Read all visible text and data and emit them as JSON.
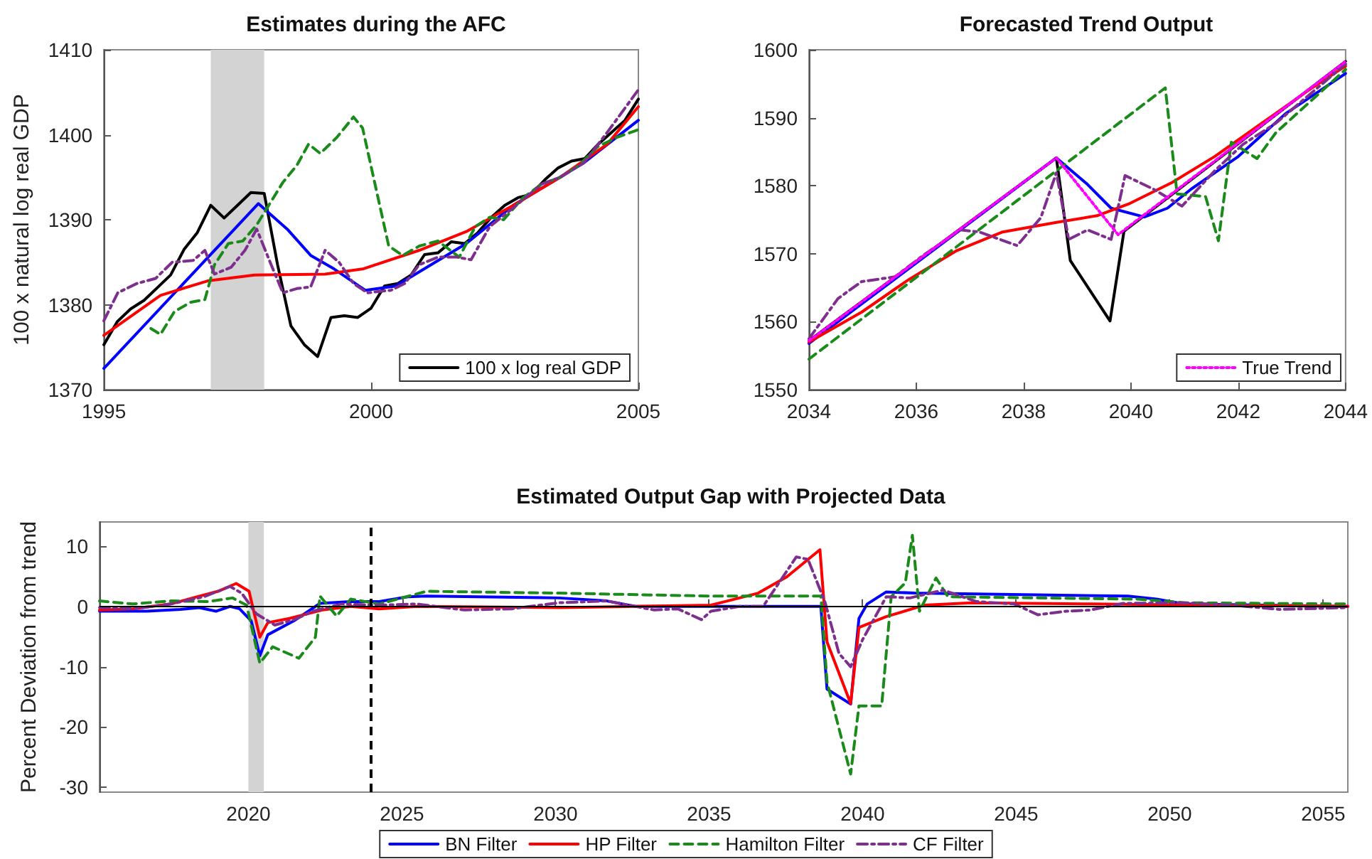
{
  "chart_data": [
    {
      "type": "line",
      "title": "Estimates during the AFC",
      "ylabel": "100 x natural log real GDP",
      "xlim": [
        1995,
        2005
      ],
      "xticks": [
        1995,
        2000,
        2005
      ],
      "ylim": [
        1370,
        1410
      ],
      "yticks": [
        1370,
        1380,
        1390,
        1400,
        1410
      ],
      "grid": false,
      "legend": "bottom right",
      "marker": "none",
      "bands": [
        {
          "axis": "x",
          "from": 1997,
          "to": 1998,
          "color": "#d3d3d3"
        }
      ],
      "series": [
        {
          "name": "100 x log real GDP",
          "color": "#000000",
          "line_style": "solid",
          "x": [
            1995,
            1995.25,
            1995.5,
            1995.75,
            1996,
            1996.25,
            1996.5,
            1996.75,
            1997,
            1997.25,
            1997.5,
            1997.75,
            1998,
            1998.25,
            1998.5,
            1998.75,
            1999,
            1999.25,
            1999.5,
            1999.75,
            2000,
            2000.25,
            2000.5,
            2000.75,
            2001,
            2001.25,
            2001.5,
            2001.75,
            2002,
            2002.25,
            2002.5,
            2002.75,
            2003,
            2003.25,
            2003.5,
            2003.75,
            2004,
            2004.25,
            2004.5,
            2004.75,
            2005
          ],
          "values": [
            1375.3,
            1378.0,
            1379.5,
            1380.5,
            1382.0,
            1383.5,
            1386.5,
            1388.5,
            1391.7,
            1390.2,
            1391.7,
            1393.2,
            1393.1,
            1384.7,
            1377.5,
            1375.3,
            1373.9,
            1378.5,
            1378.7,
            1378.5,
            1379.6,
            1382.2,
            1382.5,
            1383.5,
            1385.9,
            1386.1,
            1387.4,
            1387.2,
            1388.5,
            1390.3,
            1391.7,
            1392.6,
            1393.0,
            1394.7,
            1396.1,
            1396.9,
            1397.2,
            1398.9,
            1400.3,
            1401.7,
            1404.2
          ]
        },
        {
          "color": "#0000ff",
          "line_style": "solid",
          "x": [
            1995,
            1997.89,
            1998.43,
            1998.87,
            1999.31,
            1999.89,
            2000.46,
            2001.78,
            2002.66,
            2003.98,
            2005
          ],
          "values": [
            1372.5,
            1391.9,
            1388.9,
            1385.8,
            1384.2,
            1381.7,
            1382.2,
            1387.2,
            1391.7,
            1396.7,
            1401.7
          ]
        },
        {
          "color": "#ff0000",
          "line_style": "solid",
          "x": [
            1995,
            1996.06,
            1996.94,
            1997.82,
            1999.14,
            1999.84,
            2000.9,
            2001.78,
            2002.66,
            2003.54,
            2004.42,
            2005
          ],
          "values": [
            1376.4,
            1381.1,
            1382.8,
            1383.5,
            1383.6,
            1384.2,
            1386.4,
            1388.6,
            1391.7,
            1395.0,
            1398.9,
            1403.3
          ]
        },
        {
          "color": "#1a8a1a",
          "line_style": "dashed",
          "x": [
            1995.88,
            1996.06,
            1996.32,
            1996.63,
            1996.89,
            1997.07,
            1997.33,
            1997.6,
            1997.86,
            1998.35,
            1998.61,
            1998.83,
            1999.05,
            1999.36,
            1999.67,
            1999.84,
            2000.33,
            2000.59,
            2000.9,
            2001.25,
            2001.65,
            2001.95,
            2002.22,
            2002.48,
            2002.83,
            2003.19,
            2003.54,
            2003.89,
            2004.24,
            2004.6,
            2005
          ],
          "values": [
            1377.2,
            1376.5,
            1379.2,
            1380.3,
            1380.6,
            1384.7,
            1387.2,
            1387.5,
            1389.4,
            1394.4,
            1396.4,
            1398.9,
            1397.8,
            1399.7,
            1402.1,
            1400.8,
            1386.9,
            1385.8,
            1386.9,
            1387.5,
            1385.6,
            1389.2,
            1390.3,
            1390.0,
            1392.5,
            1394.2,
            1395.0,
            1396.4,
            1398.6,
            1399.7,
            1400.6
          ]
        },
        {
          "color": "#7e2f8e",
          "line_style": "dashdot",
          "x": [
            1995,
            1995.26,
            1995.62,
            1995.97,
            1996.28,
            1996.67,
            1996.89,
            1997.07,
            1997.38,
            1997.64,
            1997.86,
            1998.13,
            1998.35,
            1998.61,
            1998.87,
            1999.14,
            1999.4,
            1999.67,
            1999.93,
            2000.37,
            2000.63,
            2000.9,
            2001.25,
            2001.6,
            2001.87,
            2002.22,
            2002.66,
            2003.19,
            2003.54,
            2003.98,
            2004.42,
            2005
          ],
          "values": [
            1378.1,
            1381.4,
            1382.5,
            1383.1,
            1385.0,
            1385.2,
            1386.4,
            1383.6,
            1384.4,
            1386.4,
            1388.9,
            1384.7,
            1381.4,
            1381.9,
            1382.1,
            1386.4,
            1385.0,
            1382.5,
            1381.4,
            1381.7,
            1382.5,
            1384.7,
            1385.6,
            1385.6,
            1385.3,
            1389.2,
            1391.4,
            1394.2,
            1395.0,
            1396.7,
            1400.3,
            1405.3
          ]
        }
      ]
    },
    {
      "type": "line",
      "title": "Forecasted Trend Output",
      "xlim": [
        2034,
        2044
      ],
      "xticks": [
        2034,
        2036,
        2038,
        2040,
        2042,
        2044
      ],
      "ylim": [
        1550,
        1600
      ],
      "yticks": [
        1550,
        1560,
        1570,
        1580,
        1590,
        1600
      ],
      "grid": false,
      "legend": "bottom right",
      "marker": "none",
      "series": [
        {
          "color": "#000000",
          "line_style": "solid",
          "x": [
            2034,
            2038.61,
            2038.87,
            2039.61,
            2039.87,
            2044
          ],
          "values": [
            1557.2,
            1584.1,
            1569.0,
            1560.1,
            1573.3,
            1598.3
          ]
        },
        {
          "color": "#0000ff",
          "line_style": "solid",
          "x": [
            2034,
            2038.61,
            2039.19,
            2039.63,
            2040.25,
            2040.68,
            2041.12,
            2042,
            2042.88,
            2044
          ],
          "values": [
            1556.8,
            1584.1,
            1580.2,
            1576.7,
            1575.4,
            1576.7,
            1579.5,
            1584.3,
            1590.6,
            1596.5
          ]
        },
        {
          "color": "#ff0000",
          "line_style": "solid",
          "x": [
            2034,
            2034.98,
            2035.86,
            2036.74,
            2037.61,
            2038.61,
            2039.37,
            2039.98,
            2040.77,
            2041.56,
            2042.44,
            2043.32,
            2044
          ],
          "values": [
            1557.0,
            1561.4,
            1566.2,
            1570.4,
            1573.2,
            1574.6,
            1575.6,
            1577.4,
            1580.5,
            1584.3,
            1589.2,
            1594.1,
            1597.6
          ]
        },
        {
          "color": "#1a8a1a",
          "line_style": "dashed",
          "x": [
            2034,
            2040.64,
            2040.86,
            2041.39,
            2041.63,
            2041.87,
            2042.35,
            2042.7,
            2044
          ],
          "values": [
            1554.5,
            1594.4,
            1578.8,
            1578.4,
            1571.9,
            1586.4,
            1584.0,
            1587.8,
            1597.1
          ]
        },
        {
          "color": "#7e2f8e",
          "line_style": "dashdot",
          "x": [
            2034,
            2034.54,
            2034.98,
            2035.6,
            2036.12,
            2036.82,
            2037.17,
            2037.88,
            2038.32,
            2038.61,
            2038.84,
            2039.19,
            2039.63,
            2039.89,
            2040.42,
            2040.95,
            2041.56,
            2042.09,
            2042.7,
            2044
          ],
          "values": [
            1557.5,
            1563.4,
            1565.9,
            1566.6,
            1569.7,
            1573.5,
            1573.2,
            1571.2,
            1575.3,
            1581.9,
            1572.1,
            1573.5,
            1572.1,
            1581.5,
            1579.5,
            1577.0,
            1582.2,
            1586.1,
            1589.2,
            1597.9
          ]
        },
        {
          "name": "True Trend",
          "color": "#ff00ff",
          "line_style": "dotted",
          "x": [
            2034,
            2038.61,
            2039.76,
            2044
          ],
          "values": [
            1557.2,
            1584.1,
            1572.8,
            1598.3
          ]
        }
      ]
    },
    {
      "type": "line",
      "title": "Estimated Output Gap with Projected Data",
      "ylabel": "Percent Deviation from trend",
      "xlim": [
        2015.15,
        2055.8
      ],
      "xticks": [
        2020,
        2025,
        2030,
        2035,
        2040,
        2045,
        2050,
        2055
      ],
      "ylim": [
        -30.8,
        14
      ],
      "yticks": [
        -30,
        -20,
        -10,
        0,
        10
      ],
      "grid": false,
      "legend": "bottom",
      "marker": "none",
      "bands": [
        {
          "axis": "x",
          "from": 2020,
          "to": 2020.5,
          "color": "#d3d3d3"
        }
      ],
      "ref_lines": [
        {
          "axis": "y",
          "value": 0,
          "color": "#000000",
          "line_style": "solid"
        },
        {
          "axis": "x",
          "value": 2024,
          "color": "#000000",
          "line_style": "dashed"
        }
      ],
      "series": [
        {
          "name": "BN Filter",
          "color": "#0000ff",
          "line_style": "solid",
          "x": [
            2015.15,
            2016.7,
            2017.78,
            2018.4,
            2018.94,
            2019.4,
            2019.71,
            2020.09,
            2020.37,
            2020.63,
            2021.48,
            2022.33,
            2023.33,
            2024.26,
            2025.19,
            2025.8,
            2030.12,
            2031.67,
            2032.59,
            2035.06,
            2038.64,
            2038.84,
            2039.61,
            2039.88,
            2040.15,
            2040.77,
            2041.7,
            2048.64,
            2049.57,
            2050.49,
            2055.8
          ],
          "values": [
            -0.8,
            -0.8,
            -0.5,
            -0.2,
            -0.8,
            0,
            -0.4,
            -2.4,
            -8.2,
            -4.7,
            -2.4,
            0.5,
            0.8,
            0.8,
            1.6,
            1.7,
            1.4,
            0.9,
            0,
            0,
            0,
            -13.7,
            -16.2,
            -2.0,
            0.4,
            2.4,
            2.2,
            1.7,
            1.2,
            0.4,
            0
          ]
        },
        {
          "name": "HP Filter",
          "color": "#ff0000",
          "line_style": "solid",
          "x": [
            2015.15,
            2016.23,
            2017.47,
            2018.4,
            2019.01,
            2019.6,
            2020.02,
            2020.37,
            2020.63,
            2021.33,
            2021.79,
            2022.41,
            2023.33,
            2024.26,
            2025.49,
            2030.12,
            2035.06,
            2036.6,
            2037.53,
            2038.61,
            2038.84,
            2039.61,
            2039.88,
            2040.77,
            2042.01,
            2043.55,
            2047.41,
            2055.8
          ],
          "values": [
            -0.6,
            -0.4,
            0.4,
            1.7,
            2.5,
            3.8,
            2.5,
            -5.1,
            -2.7,
            -2.0,
            -1.4,
            -0.6,
            0,
            -0.4,
            0,
            -0.2,
            0.2,
            2.2,
            4.9,
            9.4,
            -5.9,
            -16.1,
            -3.5,
            -1.7,
            0.2,
            0.6,
            0.4,
            0
          ]
        },
        {
          "name": "Hamilton Filter",
          "color": "#1a8a1a",
          "line_style": "dashed",
          "x": [
            2015.15,
            2016.23,
            2017.47,
            2018.7,
            2019.48,
            2019.94,
            2020.37,
            2020.79,
            2021.64,
            2022.18,
            2022.33,
            2022.87,
            2023.33,
            2024.26,
            2025.8,
            2030.12,
            2035.06,
            2038.64,
            2038.84,
            2039.61,
            2039.88,
            2040.62,
            2040.93,
            2041.39,
            2041.62,
            2041.85,
            2042.39,
            2042.78,
            2048.95,
            2050.49,
            2055.8
          ],
          "values": [
            0.9,
            0.4,
            0.9,
            0.8,
            1.4,
            0.2,
            -9.4,
            -6.7,
            -8.6,
            -5.1,
            1.7,
            -1.6,
            1.2,
            0.4,
            2.5,
            2.2,
            1.7,
            1.7,
            -12.5,
            -27.8,
            -16.5,
            -16.5,
            1.6,
            3.9,
            11.8,
            -0.8,
            4.7,
            1.6,
            1.2,
            0.6,
            0.4
          ]
        },
        {
          "name": "CF Filter",
          "color": "#7e2f8e",
          "line_style": "dashdot",
          "x": [
            2015.15,
            2016.23,
            2017.47,
            2018.55,
            2019.4,
            2019.78,
            2020.25,
            2020.86,
            2021.48,
            2022.1,
            2023.02,
            2024.26,
            2025.49,
            2027.04,
            2028.58,
            2030.12,
            2031.67,
            2033.21,
            2033.98,
            2034.75,
            2035.06,
            2035.99,
            2036.76,
            2037.84,
            2038.22,
            2038.77,
            2039.23,
            2039.61,
            2040.0,
            2040.77,
            2041.54,
            2042.62,
            2043.7,
            2044.94,
            2045.71,
            2046.64,
            2047.41,
            2048.49,
            2050.49,
            2052.04,
            2053.58,
            2055.8
          ],
          "values": [
            -0.2,
            -0.4,
            0.4,
            1.6,
            3.3,
            2.2,
            -1.2,
            -3.1,
            -2.2,
            -0.8,
            0.4,
            0.2,
            0.4,
            -0.6,
            -0.4,
            0.6,
            0.9,
            -0.6,
            -0.4,
            -2.2,
            -0.8,
            0,
            0,
            8.2,
            7.8,
            0.8,
            -7.8,
            -10.0,
            -5.5,
            1.6,
            1.4,
            2.7,
            0.8,
            0.4,
            -1.4,
            -0.8,
            -0.6,
            0.5,
            0.6,
            0.2,
            -0.5,
            -0.2
          ]
        }
      ]
    }
  ]
}
